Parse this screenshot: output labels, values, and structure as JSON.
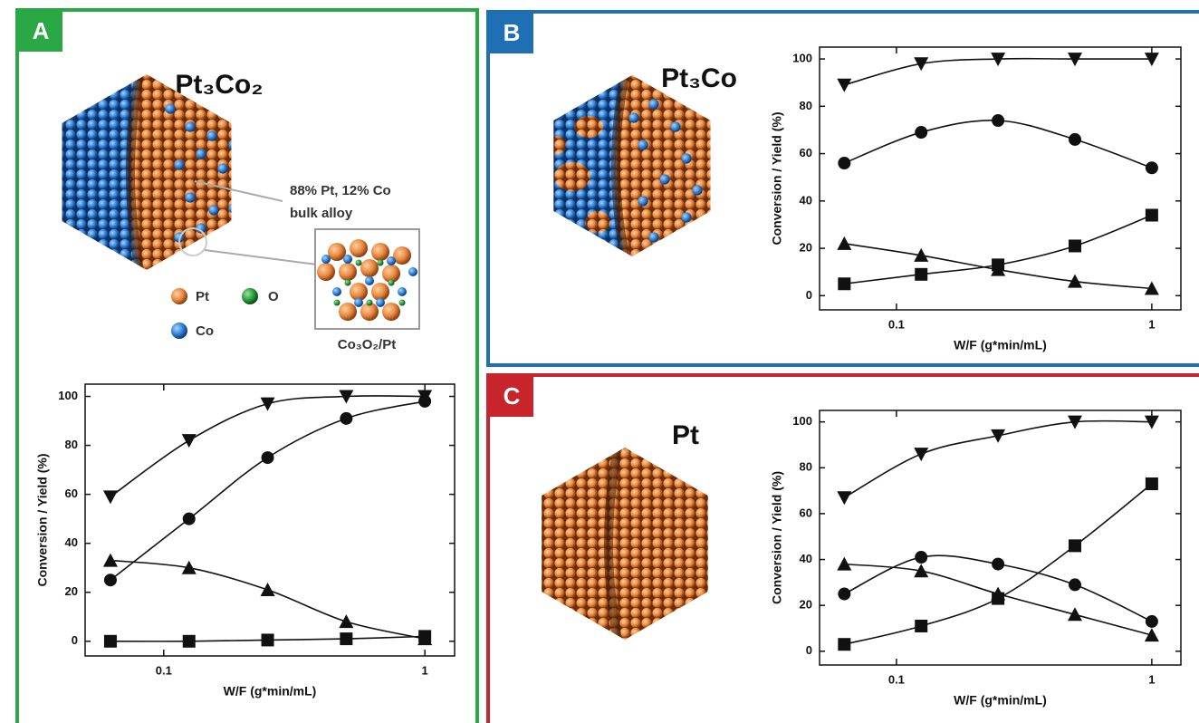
{
  "figure": {
    "panels": [
      {
        "letter": "A",
        "particle": "Pt₃Co₂",
        "annotation": [
          "88% Pt, 12% Co",
          "bulk alloy"
        ],
        "atom_legend": [
          "Pt",
          "O",
          "Co"
        ],
        "inset_label": "Co₃O₂/Pt"
      },
      {
        "letter": "B",
        "particle": "Pt₃Co"
      },
      {
        "letter": "C",
        "particle": "Pt"
      }
    ]
  },
  "chart_data": [
    {
      "type": "line",
      "xlabel": "W/F (g*min/mL)",
      "ylabel": "Conversion / Yield (%)",
      "xscale": "log",
      "x": [
        0.0625,
        0.125,
        0.25,
        0.5,
        1
      ],
      "xlim": [
        0.05,
        1.3
      ],
      "xticks": [
        0.1,
        1
      ],
      "ylim": [
        -6,
        105
      ],
      "yticks": [
        0,
        20,
        40,
        60,
        80,
        100
      ],
      "series": [
        {
          "marker": "triangle-down",
          "color": "#111111",
          "values": [
            59,
            82,
            97,
            100,
            100
          ]
        },
        {
          "marker": "circle",
          "color": "#111111",
          "values": [
            25,
            50,
            75,
            91,
            98
          ]
        },
        {
          "marker": "triangle-up",
          "color": "#111111",
          "values": [
            33,
            30,
            21,
            8,
            1
          ]
        },
        {
          "marker": "square",
          "color": "#111111",
          "values": [
            0,
            0,
            0.5,
            1,
            2
          ]
        }
      ]
    },
    {
      "type": "line",
      "xlabel": "W/F (g*min/mL)",
      "ylabel": "Conversion / Yield (%)",
      "xscale": "log",
      "x": [
        0.0625,
        0.125,
        0.25,
        0.5,
        1
      ],
      "xlim": [
        0.05,
        1.3
      ],
      "xticks": [
        0.1,
        1
      ],
      "ylim": [
        -6,
        105
      ],
      "yticks": [
        0,
        20,
        40,
        60,
        80,
        100
      ],
      "series": [
        {
          "marker": "triangle-down",
          "color": "#111111",
          "values": [
            89,
            98,
            100,
            100,
            100
          ]
        },
        {
          "marker": "circle",
          "color": "#111111",
          "values": [
            56,
            69,
            74,
            66,
            54
          ]
        },
        {
          "marker": "triangle-up",
          "color": "#111111",
          "values": [
            22,
            17,
            11,
            6,
            3
          ]
        },
        {
          "marker": "square",
          "color": "#111111",
          "values": [
            5,
            9,
            13,
            21,
            34
          ]
        }
      ]
    },
    {
      "type": "line",
      "xlabel": "W/F (g*min/mL)",
      "ylabel": "Conversion / Yield (%)",
      "xscale": "log",
      "x": [
        0.0625,
        0.125,
        0.25,
        0.5,
        1
      ],
      "xlim": [
        0.05,
        1.3
      ],
      "xticks": [
        0.1,
        1
      ],
      "ylim": [
        -6,
        105
      ],
      "yticks": [
        0,
        20,
        40,
        60,
        80,
        100
      ],
      "series": [
        {
          "marker": "triangle-down",
          "color": "#111111",
          "values": [
            67,
            86,
            94,
            100,
            100
          ]
        },
        {
          "marker": "circle",
          "color": "#111111",
          "values": [
            25,
            41,
            38,
            29,
            13
          ]
        },
        {
          "marker": "triangle-up",
          "color": "#111111",
          "values": [
            38,
            35,
            25,
            16,
            7
          ]
        },
        {
          "marker": "square",
          "color": "#111111",
          "values": [
            3,
            11,
            23,
            46,
            73
          ]
        }
      ]
    }
  ]
}
